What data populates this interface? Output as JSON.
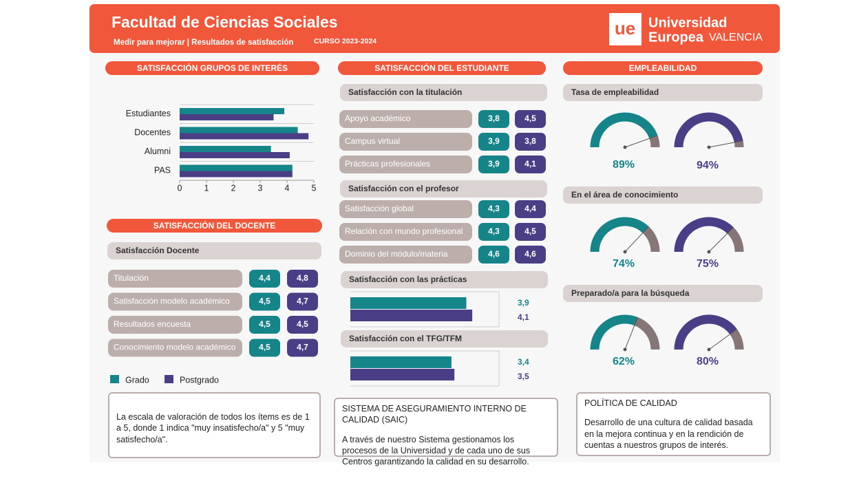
{
  "header": {
    "title": "Facultad de Ciencias Sociales",
    "subtitle": "Medir para mejorar | Resultados de satisfacción",
    "course": "CURSO 2023-2024",
    "logo_mark": "ue",
    "logo_line1": "Universidad",
    "logo_line2": "Europea",
    "logo_line3": "VALENCIA"
  },
  "docente": {
    "title": "SATISFACCIÓN DEL DOCENTE",
    "group": "Satisfacción Docente",
    "rows": [
      [
        "Titulación",
        "4,4",
        "4,8"
      ],
      [
        "Satisfacción modelo académico",
        "4,5",
        "4,7"
      ],
      [
        "Resultados encuesta",
        "4,5",
        "4,5"
      ],
      [
        "Conocimiento modelo académico",
        "4,5",
        "4,7"
      ]
    ]
  },
  "estudiante": {
    "title": "SATISFACCIÓN DEL ESTUDIANTE",
    "groups": [
      {
        "title": "Satisfacción con la titulación",
        "rows": [
          [
            "Apoyo académico",
            "3,8",
            "4,5"
          ],
          [
            "Campus virtual",
            "3,9",
            "3,8"
          ],
          [
            "Prácticas profesionales",
            "3,9",
            "4,1"
          ]
        ]
      },
      {
        "title": "Satisfacción con el profesor",
        "rows": [
          [
            "Satisfacción global",
            "4,3",
            "4,4"
          ],
          [
            "Relación con mundo profesional",
            "4,3",
            "4,5"
          ],
          [
            "Dominio del módulo/materia",
            "4,6",
            "4,6"
          ]
        ]
      }
    ]
  },
  "notes": [
    {
      "text": "La escala de valoración de todos los ítems es de 1 a 5, donde 1 indica \"muy insatisfecho/a\" y 5 \"muy satisfecho/a\"."
    },
    {
      "title": "SISTEMA DE ASEGURAMIENTO INTERNO DE CALIDAD (SAIC)",
      "text": "A través de nuestro Sistema gestionamos los procesos de la Universidad y de cada uno de sus Centros garantizando la calidad en su desarrollo."
    },
    {
      "title": "POLÍTICA DE CALIDAD",
      "text": "Desarrollo de una cultura de calidad basada en la mejora continua y en la rendición de cuentas a nuestros grupos de interés."
    }
  ],
  "chart_data": [
    {
      "type": "hbar",
      "title": "SATISFACCIÓN GRUPOS DE INTERÉS",
      "categories": [
        "Estudiantes",
        "Docentes",
        "Alumni",
        "PAS"
      ],
      "series": [
        {
          "name": "Grado",
          "color": "#16858a",
          "values": [
            3.9,
            4.4,
            3.4,
            4.2
          ]
        },
        {
          "name": "Postgrado",
          "color": "#4a3f86",
          "values": [
            3.5,
            4.8,
            4.1,
            4.2
          ]
        }
      ],
      "xlim": [
        0,
        5
      ],
      "xticks": [
        0,
        1,
        2,
        3,
        4,
        5
      ]
    },
    {
      "type": "hbar_labeled",
      "title": "Satisfacción con las prácticas",
      "series": [
        {
          "color": "#16858a",
          "values": [
            3.9
          ],
          "value_labels": [
            "3,9"
          ]
        },
        {
          "color": "#4a3f86",
          "values": [
            4.1
          ],
          "value_labels": [
            "4,1"
          ]
        }
      ],
      "xlim": [
        0,
        5
      ]
    },
    {
      "type": "hbar_labeled",
      "title": "Satisfacción con el TFG/TFM",
      "series": [
        {
          "color": "#16858a",
          "values": [
            3.4
          ],
          "value_labels": [
            "3,4"
          ]
        },
        {
          "color": "#4a3f86",
          "values": [
            3.5
          ],
          "value_labels": [
            "3,5"
          ]
        }
      ],
      "xlim": [
        0,
        5
      ]
    },
    {
      "type": "gauge",
      "title": "EMPLEABILIDAD",
      "categories": [
        "Tasa de empleabilidad",
        "En el área de conocimiento",
        "Preparado/a para la búsqueda"
      ],
      "series": [
        {
          "color": "#16858a",
          "values": [
            89,
            74,
            62
          ],
          "value_labels": [
            "89%",
            "74%",
            "62%"
          ]
        },
        {
          "color": "#4a3f86",
          "values": [
            94,
            75,
            80
          ],
          "value_labels": [
            "94%",
            "75%",
            "80%"
          ]
        }
      ],
      "ylim": [
        0,
        100
      ],
      "rest_color": "#867678"
    }
  ]
}
